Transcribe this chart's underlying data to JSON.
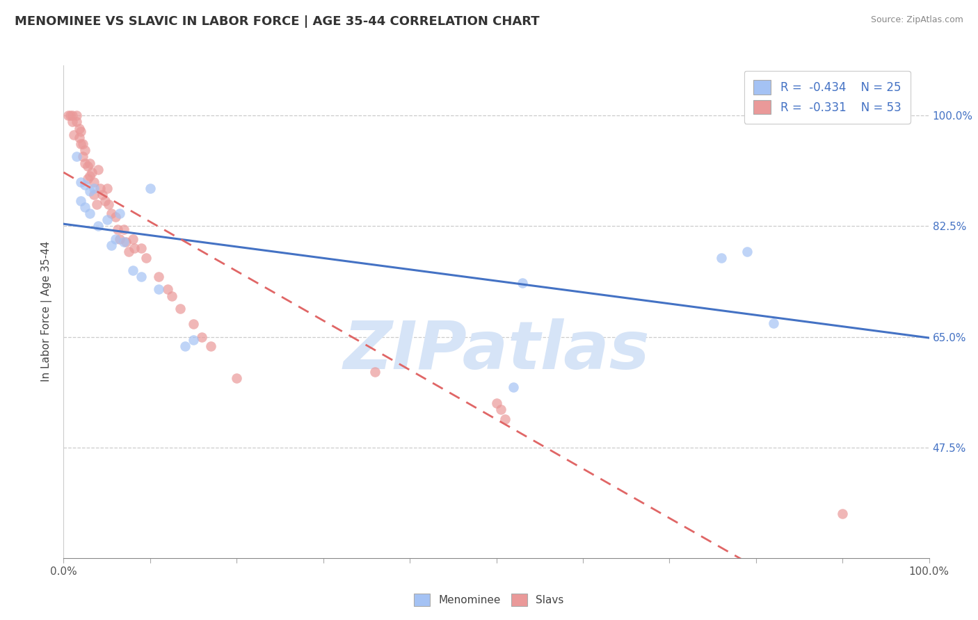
{
  "title": "MENOMINEE VS SLAVIC IN LABOR FORCE | AGE 35-44 CORRELATION CHART",
  "source": "Source: ZipAtlas.com",
  "ylabel": "In Labor Force | Age 35-44",
  "xlim": [
    0.0,
    1.0
  ],
  "ylim": [
    0.3,
    1.08
  ],
  "yticks": [
    0.475,
    0.65,
    0.825,
    1.0
  ],
  "ytick_labels": [
    "47.5%",
    "65.0%",
    "82.5%",
    "100.0%"
  ],
  "xticks": [
    0.0,
    0.1,
    0.2,
    0.3,
    0.4,
    0.5,
    0.6,
    0.7,
    0.8,
    0.9,
    1.0
  ],
  "xtick_labels": [
    "0.0%",
    "",
    "",
    "",
    "",
    "",
    "",
    "",
    "",
    "",
    "100.0%"
  ],
  "menominee_r": "-0.434",
  "menominee_n": "25",
  "slavic_r": "-0.331",
  "slavic_n": "53",
  "menominee_color": "#a4c2f4",
  "slavic_color": "#ea9999",
  "trend_menominee_color": "#4472c4",
  "trend_slavic_color": "#e06666",
  "watermark_color": "#d6e4f7",
  "background_color": "#ffffff",
  "grid_color": "#cccccc",
  "menominee_x": [
    0.015,
    0.02,
    0.02,
    0.025,
    0.025,
    0.03,
    0.03,
    0.035,
    0.04,
    0.05,
    0.055,
    0.06,
    0.065,
    0.07,
    0.08,
    0.09,
    0.1,
    0.11,
    0.14,
    0.15,
    0.52,
    0.53,
    0.76,
    0.79,
    0.82
  ],
  "menominee_y": [
    0.935,
    0.895,
    0.865,
    0.89,
    0.855,
    0.88,
    0.845,
    0.885,
    0.825,
    0.835,
    0.795,
    0.805,
    0.845,
    0.8,
    0.755,
    0.745,
    0.885,
    0.725,
    0.635,
    0.645,
    0.57,
    0.735,
    0.775,
    0.785,
    0.672
  ],
  "slavic_x": [
    0.005,
    0.008,
    0.01,
    0.01,
    0.012,
    0.015,
    0.015,
    0.018,
    0.018,
    0.02,
    0.02,
    0.022,
    0.022,
    0.025,
    0.025,
    0.028,
    0.028,
    0.03,
    0.03,
    0.033,
    0.035,
    0.035,
    0.038,
    0.04,
    0.042,
    0.045,
    0.048,
    0.05,
    0.052,
    0.055,
    0.06,
    0.062,
    0.065,
    0.07,
    0.072,
    0.075,
    0.08,
    0.082,
    0.09,
    0.095,
    0.11,
    0.12,
    0.125,
    0.135,
    0.15,
    0.16,
    0.17,
    0.2,
    0.36,
    0.5,
    0.505,
    0.51,
    0.9
  ],
  "slavic_y": [
    1.0,
    1.0,
    1.0,
    0.99,
    0.97,
    1.0,
    0.99,
    0.98,
    0.965,
    0.975,
    0.955,
    0.955,
    0.935,
    0.945,
    0.925,
    0.92,
    0.9,
    0.925,
    0.905,
    0.91,
    0.895,
    0.875,
    0.86,
    0.915,
    0.885,
    0.875,
    0.865,
    0.885,
    0.86,
    0.845,
    0.84,
    0.82,
    0.805,
    0.82,
    0.8,
    0.785,
    0.805,
    0.79,
    0.79,
    0.775,
    0.745,
    0.725,
    0.715,
    0.695,
    0.67,
    0.65,
    0.635,
    0.585,
    0.595,
    0.545,
    0.535,
    0.52,
    0.37
  ],
  "dot_size": 110,
  "dot_alpha": 0.7
}
